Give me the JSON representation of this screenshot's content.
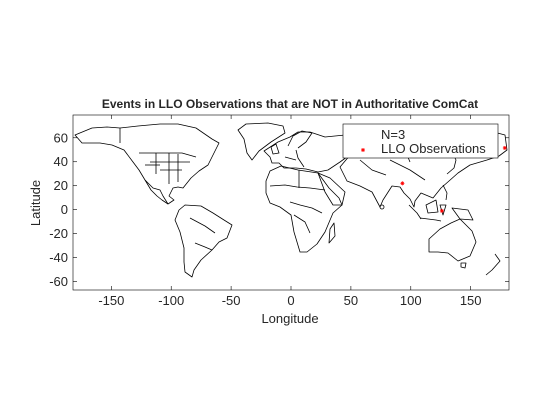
{
  "chart_data": {
    "type": "scatter",
    "title": "Events in LLO Observations that are NOT in Authoritative ComCat",
    "xlabel": "Longitude",
    "ylabel": "Latitude",
    "xlim": [
      -182,
      182
    ],
    "ylim": [
      -67,
      79
    ],
    "xticks": [
      -150,
      -100,
      -50,
      0,
      50,
      100,
      150
    ],
    "yticks": [
      -60,
      -40,
      -20,
      0,
      20,
      40,
      60
    ],
    "grid": false,
    "basemap": "world country borders",
    "legend": {
      "placement": "top-right",
      "entries": [
        "N=3",
        "LLO Observations"
      ]
    },
    "series": [
      {
        "name": "LLO Observations",
        "marker": "asterisk",
        "color": "#ff0000",
        "points": [
          {
            "lon": 178.5,
            "lat": 51.5
          },
          {
            "lon": 93.0,
            "lat": 22.0
          },
          {
            "lon": 126.0,
            "lat": -1.0
          }
        ]
      }
    ]
  }
}
